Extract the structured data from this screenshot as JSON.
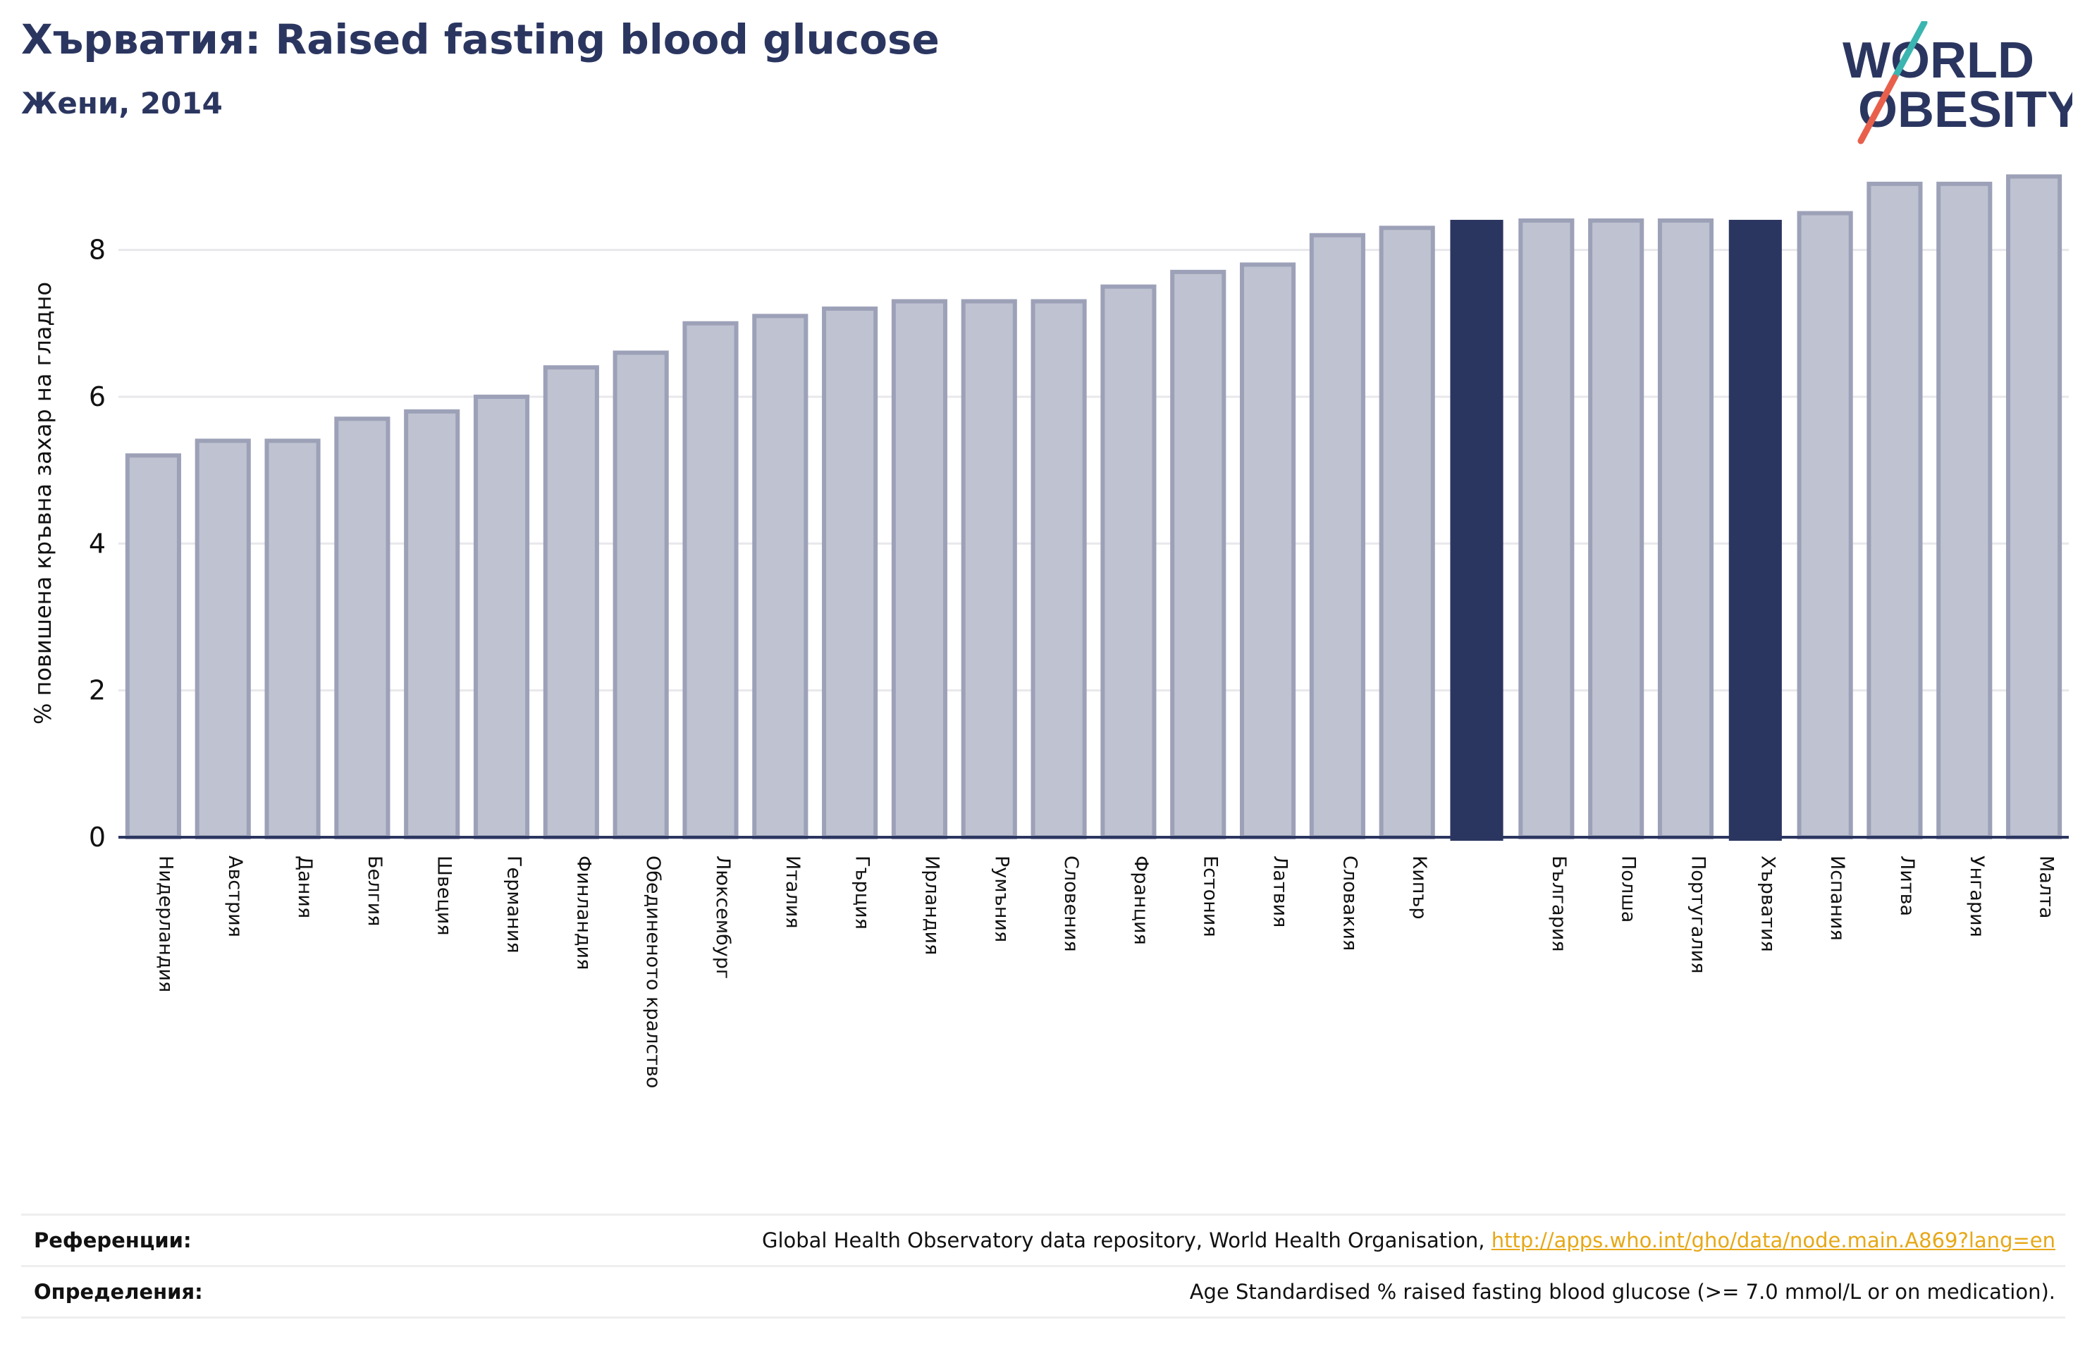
{
  "header": {
    "title": "Хърватия: Raised fasting blood glucose",
    "subtitle": "Жени, 2014"
  },
  "logo": {
    "line1": "WORLD",
    "line2": "OBESITY",
    "text_color": "#2b3660",
    "slash_color_top": "#3bb5b0",
    "slash_color_bottom": "#e8604c"
  },
  "chart_data": {
    "type": "bar",
    "title": "Хърватия: Raised fasting blood glucose",
    "subtitle": "Жени, 2014",
    "ylabel": "% повишена кръвна захар на гладно",
    "xlabel": "",
    "ylim": [
      0,
      9.1
    ],
    "yticks": [
      0,
      2,
      4,
      6,
      8
    ],
    "grid": true,
    "categories": [
      "Нидерландия",
      "Австрия",
      "Дания",
      "Белгия",
      "Швеция",
      "Германия",
      "Финландия",
      "Обединеното кралство",
      "Люксембург",
      "Италия",
      "Гърция",
      "Ирландия",
      "Румъния",
      "Словения",
      "Франция",
      "Естония",
      "Латвия",
      "Словакия",
      "Кипър",
      "",
      "България",
      "Полша",
      "Португалия",
      "Хърватия",
      "Испания",
      "Литва",
      "Унгария",
      "Малта"
    ],
    "values": [
      5.2,
      5.4,
      5.4,
      5.7,
      5.8,
      6.0,
      6.4,
      6.6,
      7.0,
      7.1,
      7.2,
      7.3,
      7.3,
      7.3,
      7.5,
      7.7,
      7.8,
      8.2,
      8.3,
      8.4,
      8.4,
      8.4,
      8.4,
      8.4,
      8.5,
      8.9,
      8.9,
      9.0
    ],
    "highlighted": [
      19,
      23
    ],
    "colors": {
      "bar_fill": "#bfc2d0",
      "bar_stroke": "#9da1b8",
      "highlight": "#2b3660",
      "grid": "#e8e8ec",
      "axis": "#2b3660"
    }
  },
  "footer": {
    "references_label": "Референции:",
    "references_text": "Global Health Observatory data repository, World Health Organisation, ",
    "references_link": "http://apps.who.int/gho/data/node.main.A869?lang=en",
    "definitions_label": "Определения:",
    "definitions_text": "Age Standardised % raised fasting blood glucose (>= 7.0 mmol/L or on medication)."
  }
}
